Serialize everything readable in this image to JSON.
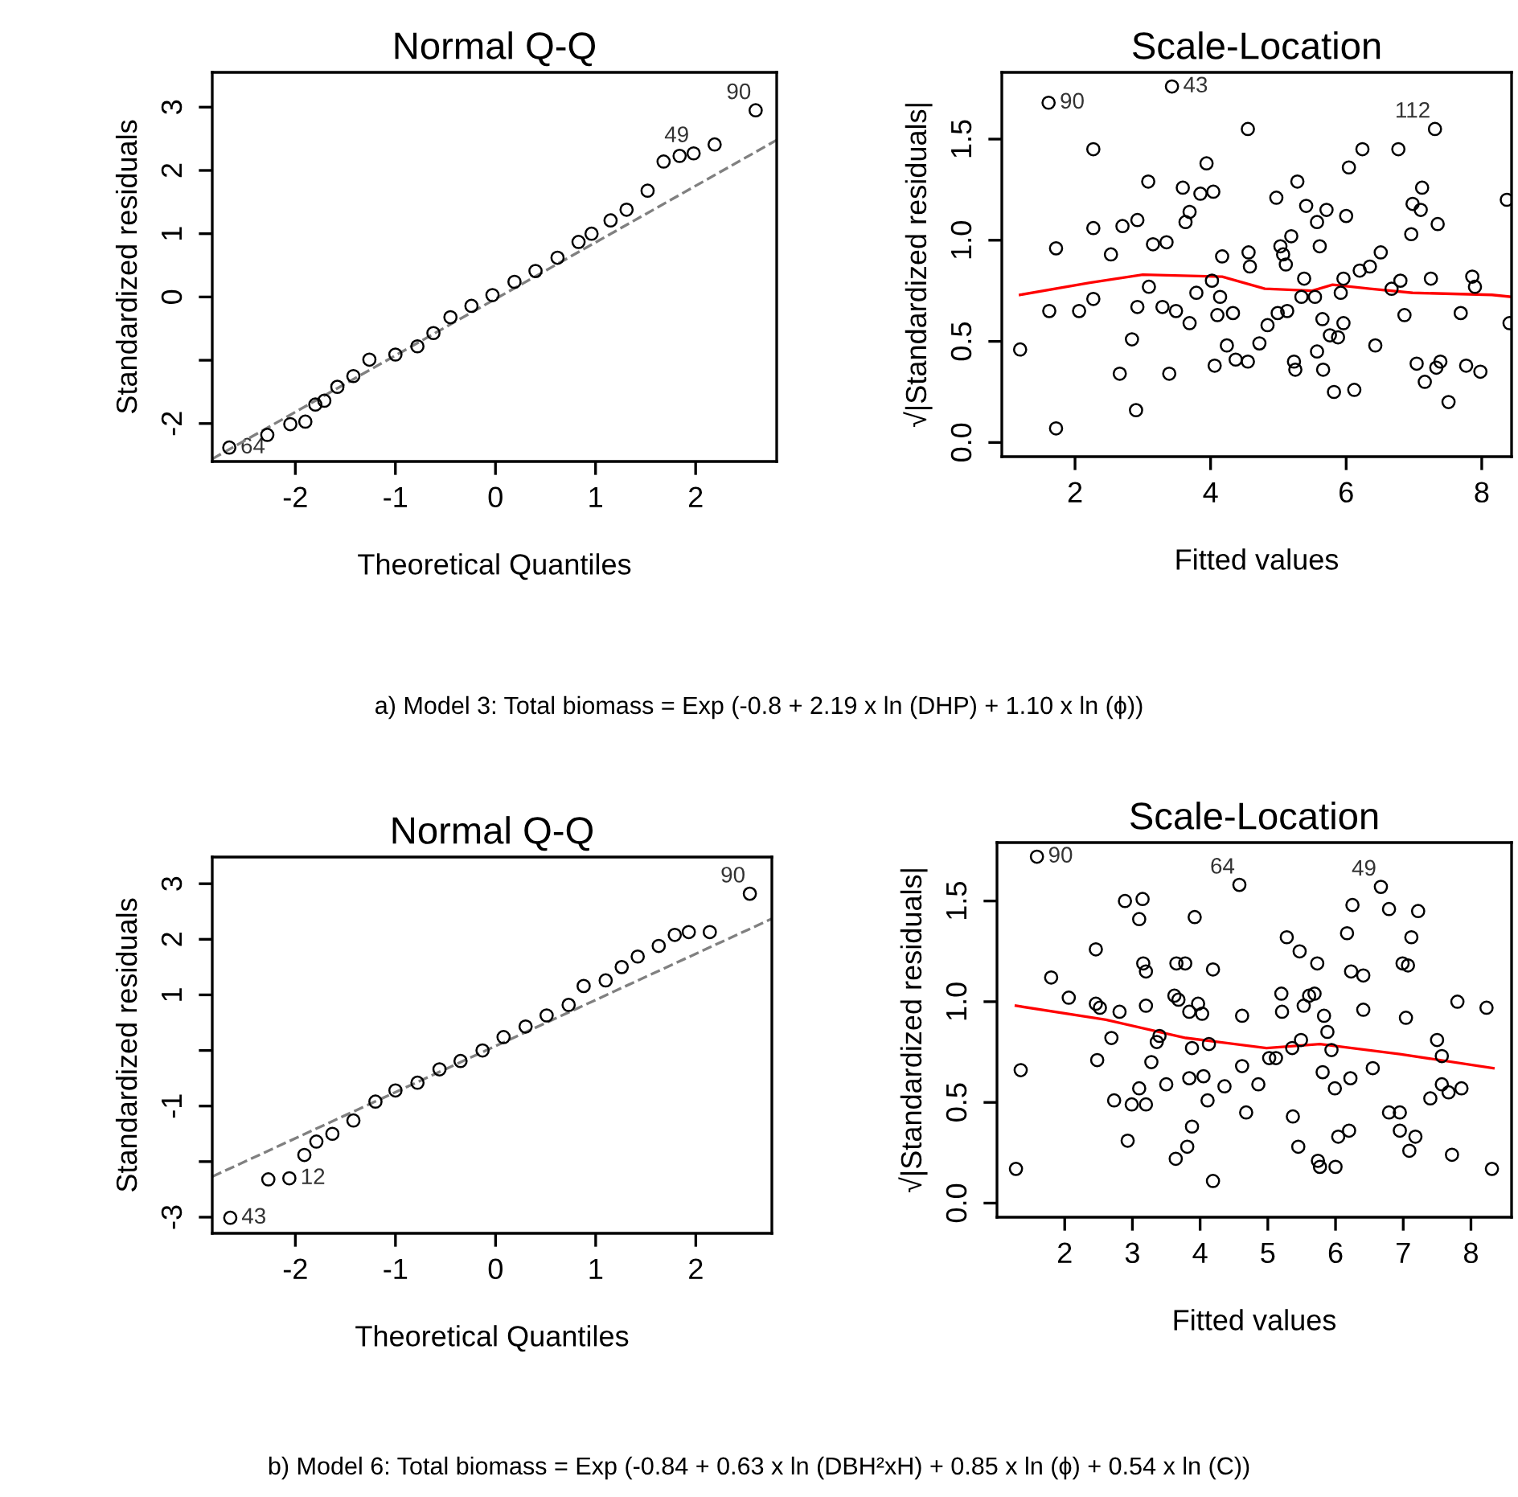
{
  "chart_data": [
    {
      "type": "scatter",
      "title": "Normal Q-Q",
      "xlabel": "Theoretical Quantiles",
      "ylabel": "Standardized residuals",
      "xlim": [
        -2.83,
        2.81
      ],
      "ylim": [
        -2.6,
        3.55
      ],
      "xticks": [
        -2,
        -1,
        0,
        1,
        2
      ],
      "yticks": [
        -2,
        {
          "value": -1,
          "label": null
        },
        0,
        1,
        2,
        3
      ],
      "series": [
        {
          "marker": "circle",
          "color": "#000000",
          "x": [
            -2.66,
            -2.28,
            -2.05,
            -1.9,
            -1.8,
            -1.71,
            -1.58,
            -1.42,
            -1.26,
            -1.0,
            -0.78,
            -0.62,
            -0.45,
            -0.24,
            -0.03,
            0.19,
            0.4,
            0.62,
            0.83,
            0.96,
            1.15,
            1.31,
            1.52,
            1.68,
            1.84,
            1.98,
            2.19,
            2.6
          ],
          "values": [
            -2.38,
            -2.18,
            -2.01,
            -1.97,
            -1.7,
            -1.64,
            -1.42,
            -1.25,
            -0.99,
            -0.91,
            -0.78,
            -0.57,
            -0.32,
            -0.14,
            0.03,
            0.24,
            0.41,
            0.62,
            0.87,
            1.0,
            1.21,
            1.38,
            1.68,
            2.14,
            2.23,
            2.27,
            2.41,
            2.95
          ]
        },
        {
          "type": "line",
          "marker": "none",
          "color": "#808080",
          "line_style": "dashed",
          "x": [
            -2.83,
            2.81
          ],
          "values": [
            -2.56,
            2.48
          ]
        }
      ],
      "annotations": [
        {
          "text": "90",
          "x": 2.6,
          "y": 2.95
        },
        {
          "text": "49",
          "x": 1.98,
          "y": 2.27
        },
        {
          "text": "64",
          "x": -2.66,
          "y": -2.38
        },
        "a) Model 3: Total biomass = Exp (-0.8 + 2.19 x ln (DHP) + 1.10 x ln (ϕ))"
      ]
    },
    {
      "type": "scatter",
      "title": "Scale-Location",
      "xlabel": "Fitted values",
      "ylabel": "√|Standardized residuals|",
      "xlim": [
        0.92,
        8.44
      ],
      "ylim": [
        -0.07,
        1.83
      ],
      "xticks": [
        2,
        4,
        6,
        8
      ],
      "yticks": [
        {
          "value": 0,
          "label": "0.0"
        },
        {
          "value": 0.5,
          "label": "0.5"
        },
        {
          "value": 1,
          "label": "1.0"
        },
        {
          "value": 1.5,
          "label": "1.5"
        }
      ],
      "series": [
        {
          "marker": "circle",
          "color": "#000000",
          "x": [
            1.19,
            1.61,
            1.62,
            1.72,
            1.72,
            2.06,
            2.27,
            2.27,
            2.27,
            2.53,
            2.66,
            2.7,
            2.84,
            2.9,
            2.92,
            2.92,
            3.08,
            3.09,
            3.15,
            3.29,
            3.35,
            3.39,
            3.43,
            3.49,
            3.59,
            3.63,
            3.69,
            3.69,
            3.79,
            3.85,
            3.94,
            4.02,
            4.04,
            4.06,
            4.1,
            4.14,
            4.17,
            4.24,
            4.33,
            4.37,
            4.55,
            4.55,
            4.56,
            4.58,
            4.72,
            4.84,
            4.97,
            4.99,
            5.03,
            5.07,
            5.11,
            5.13,
            5.19,
            5.23,
            5.25,
            5.28,
            5.34,
            5.38,
            5.41,
            5.54,
            5.57,
            5.61,
            5.57,
            5.65,
            5.66,
            5.71,
            5.76,
            5.82,
            5.88,
            5.92,
            5.96,
            6.0,
            5.96,
            6.04,
            6.12,
            6.2,
            6.24,
            6.35,
            6.43,
            6.51,
            6.67,
            6.77,
            6.8,
            6.86,
            6.96,
            7.04,
            6.98,
            7.1,
            7.12,
            7.16,
            7.25,
            7.31,
            7.33,
            7.35,
            7.39,
            7.51,
            7.69,
            7.77,
            7.86,
            7.9,
            7.98,
            8.37,
            8.41
          ],
          "values": [
            0.46,
            1.68,
            0.65,
            0.96,
            0.07,
            0.65,
            1.45,
            1.06,
            0.71,
            0.93,
            0.34,
            1.07,
            0.51,
            0.16,
            1.1,
            0.67,
            1.29,
            0.77,
            0.98,
            0.67,
            0.99,
            0.34,
            1.76,
            0.65,
            1.26,
            1.09,
            0.59,
            1.14,
            0.74,
            1.23,
            1.38,
            0.8,
            1.24,
            0.38,
            0.63,
            0.72,
            0.92,
            0.48,
            0.64,
            0.41,
            1.55,
            0.4,
            0.94,
            0.87,
            0.49,
            0.58,
            1.21,
            0.64,
            0.97,
            0.93,
            0.88,
            0.65,
            1.02,
            0.4,
            0.36,
            1.29,
            0.72,
            0.81,
            1.17,
            0.72,
            1.09,
            0.97,
            0.45,
            0.61,
            0.36,
            1.15,
            0.53,
            0.25,
            0.52,
            0.74,
            0.81,
            1.12,
            0.59,
            1.36,
            0.26,
            0.85,
            1.45,
            0.87,
            0.48,
            0.94,
            0.76,
            1.45,
            0.8,
            0.63,
            1.03,
            0.39,
            1.18,
            1.15,
            1.26,
            0.3,
            0.81,
            1.55,
            0.37,
            1.08,
            0.4,
            0.2,
            0.64,
            0.38,
            0.82,
            0.77,
            0.35,
            1.2,
            0.59
          ]
        },
        {
          "type": "line",
          "marker": "none",
          "color": "#ff0000",
          "line_style": "solid",
          "x": [
            1.19,
            2.22,
            3.0,
            4.17,
            4.8,
            5.5,
            5.8,
            6.35,
            6.98,
            8.15,
            8.44
          ],
          "values": [
            0.73,
            0.79,
            0.83,
            0.82,
            0.76,
            0.75,
            0.78,
            0.76,
            0.74,
            0.73,
            0.72
          ]
        }
      ],
      "annotations": [
        {
          "text": "90",
          "x": 1.61,
          "y": 1.68
        },
        {
          "text": "43",
          "x": 3.43,
          "y": 1.76
        },
        {
          "text": "112",
          "x": 7.31,
          "y": 1.55
        }
      ]
    },
    {
      "type": "scatter",
      "title": "Normal Q-Q",
      "xlabel": "Theoretical Quantiles",
      "ylabel": "Standardized residuals",
      "xlim": [
        -2.83,
        2.76
      ],
      "ylim": [
        -3.29,
        3.48
      ],
      "xticks": [
        -2,
        -1,
        0,
        1,
        2
      ],
      "yticks": [
        -3,
        {
          "value": -2,
          "label": null
        },
        -1,
        {
          "value": 0,
          "label": null
        },
        1,
        2,
        3
      ],
      "series": [
        {
          "marker": "circle",
          "color": "#000000",
          "x": [
            -2.65,
            -2.27,
            -2.06,
            -1.91,
            -1.79,
            -1.63,
            -1.42,
            -1.2,
            -1.0,
            -0.78,
            -0.56,
            -0.35,
            -0.13,
            0.08,
            0.3,
            0.51,
            0.73,
            0.88,
            1.1,
            1.26,
            1.42,
            1.63,
            1.79,
            1.93,
            2.14,
            2.54
          ],
          "values": [
            -3.01,
            -2.32,
            -2.3,
            -1.88,
            -1.64,
            -1.5,
            -1.26,
            -0.92,
            -0.72,
            -0.58,
            -0.34,
            -0.19,
            0.0,
            0.24,
            0.43,
            0.63,
            0.82,
            1.16,
            1.26,
            1.5,
            1.69,
            1.88,
            2.08,
            2.13,
            2.13,
            2.82
          ]
        },
        {
          "type": "line",
          "marker": "none",
          "color": "#808080",
          "line_style": "dashed",
          "x": [
            -2.83,
            2.76
          ],
          "values": [
            -2.27,
            2.37
          ]
        }
      ],
      "annotations": [
        {
          "text": "90",
          "x": 2.54,
          "y": 2.82
        },
        {
          "text": "12",
          "x": -2.06,
          "y": -2.3
        },
        {
          "text": "43",
          "x": -2.65,
          "y": -3.01
        },
        "b) Model 6: Total biomass = Exp (-0.84 + 0.63 x ln (DBH²xH) + 0.85 x ln (ϕ) + 0.54 x ln (C))"
      ]
    },
    {
      "type": "scatter",
      "title": "Scale-Location",
      "xlabel": "Fitted values",
      "ylabel": "√|Standardized residuals|",
      "xlim": [
        1.0,
        8.6
      ],
      "ylim": [
        -0.07,
        1.79
      ],
      "xticks": [
        2,
        3,
        4,
        5,
        6,
        7,
        8
      ],
      "yticks": [
        {
          "value": 0,
          "label": "0.0"
        },
        {
          "value": 0.5,
          "label": "0.5"
        },
        {
          "value": 1,
          "label": "1.0"
        },
        {
          "value": 1.5,
          "label": "1.5"
        }
      ],
      "series": [
        {
          "marker": "circle",
          "color": "#000000",
          "x": [
            1.28,
            1.35,
            1.59,
            1.8,
            2.06,
            2.46,
            2.46,
            2.48,
            2.52,
            2.69,
            2.73,
            2.81,
            2.93,
            2.89,
            2.99,
            3.1,
            3.1,
            3.15,
            3.16,
            3.2,
            3.2,
            3.2,
            3.28,
            3.36,
            3.4,
            3.5,
            3.62,
            3.64,
            3.65,
            3.68,
            3.78,
            3.81,
            3.84,
            3.84,
            3.88,
            3.88,
            3.92,
            3.97,
            4.03,
            4.05,
            4.11,
            4.13,
            4.19,
            4.19,
            4.36,
            4.58,
            4.62,
            4.62,
            4.68,
            4.86,
            5.02,
            5.12,
            5.2,
            5.21,
            5.28,
            5.36,
            5.37,
            5.45,
            5.47,
            5.49,
            5.53,
            5.61,
            5.69,
            5.73,
            5.74,
            5.77,
            5.81,
            5.83,
            5.88,
            5.94,
            5.99,
            6.0,
            6.04,
            6.17,
            6.2,
            6.22,
            6.23,
            6.25,
            6.41,
            6.41,
            6.55,
            6.67,
            6.79,
            6.79,
            6.95,
            6.95,
            6.99,
            7.04,
            7.07,
            7.09,
            7.12,
            7.18,
            7.22,
            7.4,
            7.5,
            7.57,
            7.57,
            7.67,
            7.72,
            7.8,
            7.86,
            8.23,
            8.31
          ],
          "values": [
            0.17,
            0.66,
            1.72,
            1.12,
            1.02,
            1.26,
            0.99,
            0.71,
            0.97,
            0.82,
            0.51,
            0.95,
            0.31,
            1.5,
            0.49,
            1.41,
            0.57,
            1.51,
            1.19,
            1.15,
            0.49,
            0.98,
            0.7,
            0.8,
            0.83,
            0.59,
            1.03,
            0.22,
            1.19,
            1.01,
            1.19,
            0.28,
            0.62,
            0.95,
            0.38,
            0.77,
            1.42,
            0.99,
            0.94,
            0.63,
            0.51,
            0.79,
            0.11,
            1.16,
            0.58,
            1.58,
            0.93,
            0.68,
            0.45,
            0.59,
            0.72,
            0.72,
            1.04,
            0.95,
            1.32,
            0.77,
            0.43,
            0.28,
            1.25,
            0.81,
            0.98,
            1.03,
            1.04,
            1.19,
            0.21,
            0.18,
            0.65,
            0.93,
            0.85,
            0.76,
            0.57,
            0.18,
            0.33,
            1.34,
            0.36,
            0.62,
            1.15,
            1.48,
            1.13,
            0.96,
            0.67,
            1.57,
            1.46,
            0.45,
            0.45,
            0.36,
            1.19,
            0.92,
            1.18,
            0.26,
            1.32,
            0.33,
            1.45,
            0.52,
            0.81,
            0.73,
            0.59,
            0.55,
            0.24,
            1.0,
            0.57,
            0.97,
            0.17
          ]
        },
        {
          "type": "line",
          "marker": "none",
          "color": "#ff0000",
          "line_style": "solid",
          "x": [
            1.28,
            2.61,
            3.79,
            4.98,
            5.77,
            6.95,
            8.33
          ],
          "values": [
            0.98,
            0.91,
            0.82,
            0.77,
            0.79,
            0.74,
            0.67
          ]
        }
      ],
      "annotations": [
        {
          "text": "90",
          "x": 1.59,
          "y": 1.72
        },
        {
          "text": "64",
          "x": 4.58,
          "y": 1.58
        },
        {
          "text": "49",
          "x": 6.67,
          "y": 1.57
        }
      ]
    }
  ]
}
